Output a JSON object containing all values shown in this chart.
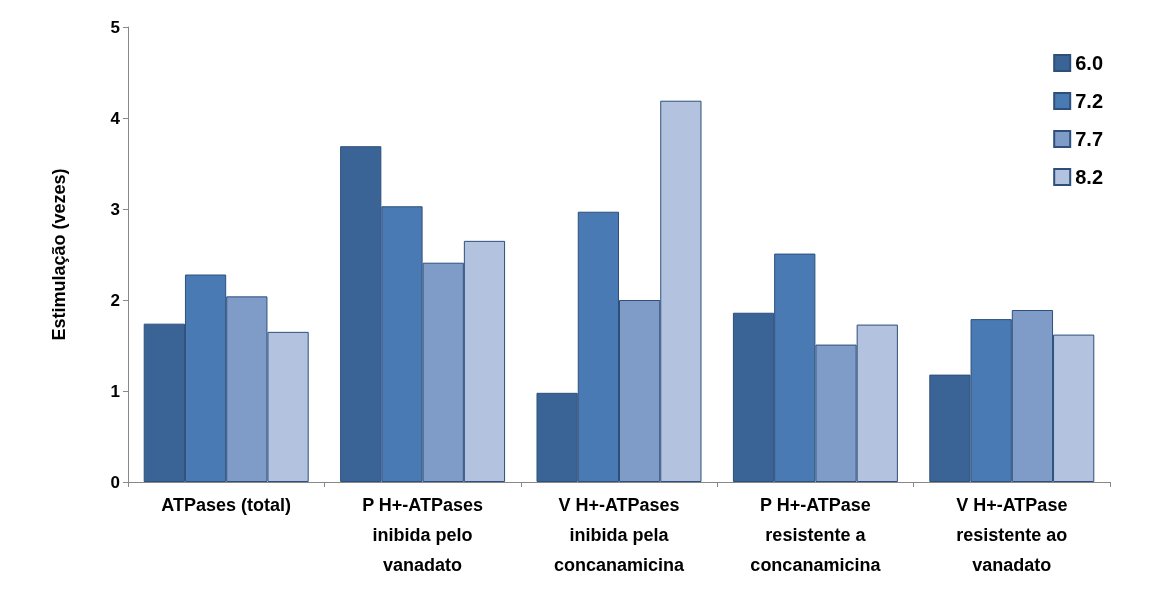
{
  "chart_data": {
    "type": "bar",
    "ylabel": "Estimulação (vezes)",
    "categories": [
      "ATPases (total)",
      "P H+-ATPases\ninibida pelo\nvanadato",
      "V H+-ATPases\ninibida pela\nconcanamicina",
      "P H+-ATPase\nresistente a\nconcanamicina",
      "V H+-ATPase\nresistente ao\nvanadato"
    ],
    "series": [
      {
        "name": "6.0",
        "color": "#3b6496",
        "values": [
          1.74,
          3.69,
          0.98,
          1.86,
          1.18
        ]
      },
      {
        "name": "7.2",
        "color": "#4a7ab4",
        "values": [
          2.28,
          3.03,
          2.97,
          2.51,
          1.79
        ]
      },
      {
        "name": "7.7",
        "color": "#7f9cc8",
        "values": [
          2.04,
          2.41,
          2.0,
          1.51,
          1.89
        ]
      },
      {
        "name": "8.2",
        "color": "#b3c3df",
        "values": [
          1.65,
          2.65,
          4.19,
          1.73,
          1.62
        ]
      }
    ],
    "ylim": [
      0,
      5
    ],
    "yticks": [
      0,
      1,
      2,
      3,
      4,
      5
    ],
    "grid": false,
    "legend": "top right"
  }
}
